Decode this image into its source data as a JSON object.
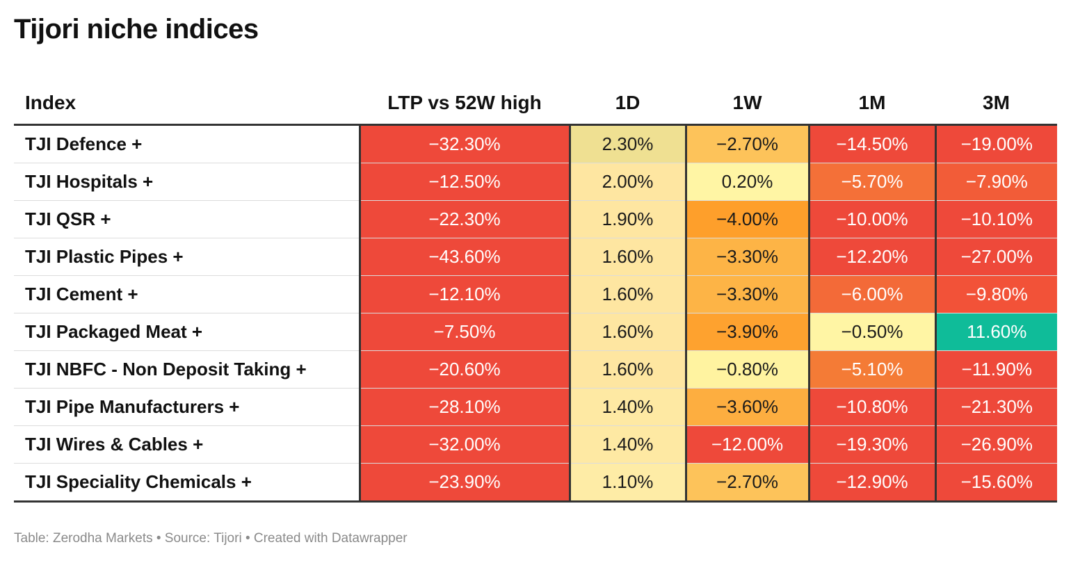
{
  "title": "Tijori niche indices",
  "footer": "Table: Zerodha Markets • Source: Tijori • Created with Datawrapper",
  "chart_data": {
    "type": "table",
    "title": "Tijori niche indices",
    "columns": [
      "Index",
      "LTP vs 52W high",
      "1D",
      "1W",
      "1M",
      "3M"
    ],
    "rows": [
      {
        "name": "TJI Defence +",
        "values": [
          "−32.30%",
          "2.30%",
          "−2.70%",
          "−14.50%",
          "−19.00%"
        ],
        "colors": [
          "#ee493a",
          "#efe092",
          "#fdc35a",
          "#ee493a",
          "#ee493a"
        ]
      },
      {
        "name": "TJI Hospitals +",
        "values": [
          "−12.50%",
          "2.00%",
          "0.20%",
          "−5.70%",
          "−7.90%"
        ],
        "colors": [
          "#ee493a",
          "#fee6a1",
          "#fff5a4",
          "#f47038",
          "#f25c38"
        ]
      },
      {
        "name": "TJI QSR +",
        "values": [
          "−22.30%",
          "1.90%",
          "−4.00%",
          "−10.00%",
          "−10.10%"
        ],
        "colors": [
          "#ee493a",
          "#fee6a1",
          "#fe9f2b",
          "#ee493a",
          "#ee493a"
        ]
      },
      {
        "name": "TJI Plastic Pipes +",
        "values": [
          "−43.60%",
          "1.60%",
          "−3.30%",
          "−12.20%",
          "−27.00%"
        ],
        "colors": [
          "#ee493a",
          "#fee6a1",
          "#fdb446",
          "#ee493a",
          "#ee493a"
        ]
      },
      {
        "name": "TJI Cement +",
        "values": [
          "−12.10%",
          "1.60%",
          "−3.30%",
          "−6.00%",
          "−9.80%"
        ],
        "colors": [
          "#ee493a",
          "#fee6a1",
          "#fdb446",
          "#f36a38",
          "#f25238"
        ]
      },
      {
        "name": "TJI Packaged Meat +",
        "values": [
          "−7.50%",
          "1.60%",
          "−3.90%",
          "−0.50%",
          "11.60%"
        ],
        "colors": [
          "#ee493a",
          "#fee6a1",
          "#fea22f",
          "#fff5a4",
          "#0fbc99"
        ]
      },
      {
        "name": "TJI NBFC - Non Deposit Taking +",
        "values": [
          "−20.60%",
          "1.60%",
          "−0.80%",
          "−5.10%",
          "−11.90%"
        ],
        "colors": [
          "#ee493a",
          "#fee6a1",
          "#fff3a0",
          "#f47b36",
          "#ee493a"
        ]
      },
      {
        "name": "TJI Pipe Manufacturers +",
        "values": [
          "−28.10%",
          "1.40%",
          "−3.60%",
          "−10.80%",
          "−21.30%"
        ],
        "colors": [
          "#ee493a",
          "#fee9a3",
          "#fdae40",
          "#ee493a",
          "#ee493a"
        ]
      },
      {
        "name": "TJI Wires & Cables +",
        "values": [
          "−32.00%",
          "1.40%",
          "−12.00%",
          "−19.30%",
          "−26.90%"
        ],
        "colors": [
          "#ee493a",
          "#fee9a3",
          "#ee493a",
          "#ee493a",
          "#ee493a"
        ]
      },
      {
        "name": "TJI Speciality Chemicals +",
        "values": [
          "−23.90%",
          "1.10%",
          "−2.70%",
          "−12.90%",
          "−15.60%"
        ],
        "colors": [
          "#ee493a",
          "#feeca6",
          "#fdc35a",
          "#ee493a",
          "#ee493a"
        ]
      }
    ]
  }
}
